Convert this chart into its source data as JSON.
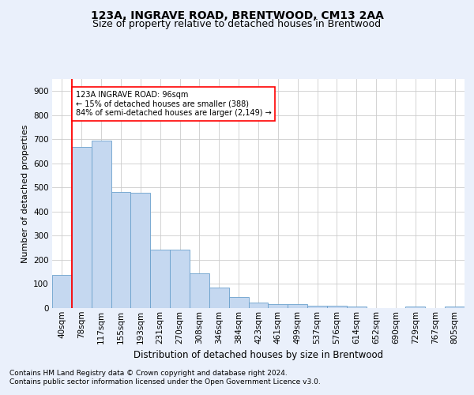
{
  "title": "123A, INGRAVE ROAD, BRENTWOOD, CM13 2AA",
  "subtitle": "Size of property relative to detached houses in Brentwood",
  "xlabel": "Distribution of detached houses by size in Brentwood",
  "ylabel": "Number of detached properties",
  "bar_labels": [
    "40sqm",
    "78sqm",
    "117sqm",
    "155sqm",
    "193sqm",
    "231sqm",
    "270sqm",
    "308sqm",
    "346sqm",
    "384sqm",
    "423sqm",
    "461sqm",
    "499sqm",
    "537sqm",
    "576sqm",
    "614sqm",
    "652sqm",
    "690sqm",
    "729sqm",
    "767sqm",
    "805sqm"
  ],
  "bar_heights": [
    137,
    667,
    693,
    480,
    478,
    244,
    244,
    145,
    84,
    46,
    22,
    17,
    17,
    10,
    10,
    7,
    0,
    0,
    7,
    0,
    7
  ],
  "bar_color": "#c5d8f0",
  "bar_edge_color": "#6aa0cc",
  "vline_x_index": 1,
  "vline_color": "red",
  "ylim": [
    0,
    950
  ],
  "yticks": [
    0,
    100,
    200,
    300,
    400,
    500,
    600,
    700,
    800,
    900
  ],
  "annotation_text": "123A INGRAVE ROAD: 96sqm\n← 15% of detached houses are smaller (388)\n84% of semi-detached houses are larger (2,149) →",
  "annotation_box_color": "white",
  "annotation_box_edgecolor": "red",
  "footer_text": "Contains HM Land Registry data © Crown copyright and database right 2024.\nContains public sector information licensed under the Open Government Licence v3.0.",
  "background_color": "#eaf0fb",
  "plot_bg_color": "white",
  "grid_color": "#cccccc",
  "title_fontsize": 10,
  "subtitle_fontsize": 9,
  "xlabel_fontsize": 8.5,
  "ylabel_fontsize": 8,
  "tick_fontsize": 7.5,
  "footer_fontsize": 6.5
}
